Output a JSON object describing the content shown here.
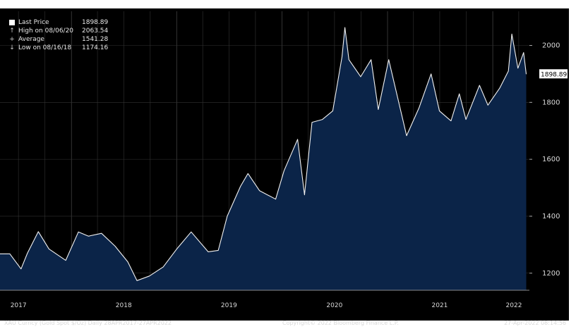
{
  "chart_data": {
    "type": "area",
    "title": "",
    "xlabel": "",
    "ylabel": "",
    "ylim": [
      1140,
      2120
    ],
    "yticks": [
      1200,
      1400,
      1600,
      1800,
      2000
    ],
    "x_tick_labels": [
      "2017",
      "2018",
      "2019",
      "2020",
      "2021",
      "2022"
    ],
    "x": [
      "2017-04-28",
      "2017-06-01",
      "2017-07-10",
      "2017-08-01",
      "2017-09-08",
      "2017-10-15",
      "2017-12-12",
      "2018-01-25",
      "2018-03-01",
      "2018-04-15",
      "2018-06-01",
      "2018-07-15",
      "2018-08-16",
      "2018-09-28",
      "2018-11-15",
      "2019-01-01",
      "2019-02-20",
      "2019-04-20",
      "2019-05-25",
      "2019-06-25",
      "2019-08-10",
      "2019-09-05",
      "2019-10-15",
      "2019-12-10",
      "2020-01-08",
      "2020-02-24",
      "2020-03-19",
      "2020-04-14",
      "2020-05-20",
      "2020-06-25",
      "2020-07-27",
      "2020-08-06",
      "2020-08-20",
      "2020-09-30",
      "2020-11-05",
      "2020-11-30",
      "2021-01-05",
      "2021-03-08",
      "2021-04-20",
      "2021-06-01",
      "2021-06-30",
      "2021-08-09",
      "2021-09-07",
      "2021-09-30",
      "2021-11-16",
      "2021-12-15",
      "2022-01-25",
      "2022-02-24",
      "2022-03-08",
      "2022-03-29",
      "2022-04-18",
      "2022-04-27"
    ],
    "series": [
      {
        "name": "",
        "values": [
          1268,
          1268,
          1215,
          1270,
          1346,
          1285,
          1245,
          1345,
          1330,
          1340,
          1295,
          1240,
          1174,
          1190,
          1222,
          1285,
          1345,
          1275,
          1280,
          1400,
          1505,
          1550,
          1490,
          1460,
          1560,
          1670,
          1475,
          1730,
          1740,
          1770,
          1960,
          2063,
          1950,
          1890,
          1950,
          1775,
          1950,
          1683,
          1780,
          1900,
          1770,
          1735,
          1830,
          1740,
          1860,
          1790,
          1850,
          1910,
          2040,
          1920,
          1975,
          1899
        ]
      }
    ],
    "last_price_marker": "1898.89",
    "legend_position": "top-left",
    "grid": true,
    "colors": {
      "fill": "#0b2448",
      "line": "#f2f2f2",
      "grid": "#333333",
      "background": "#000000"
    }
  },
  "legend": {
    "items": [
      {
        "icon": "square-icon",
        "name": "Last Price",
        "value": "1898.89"
      },
      {
        "icon": "arrow-up-icon",
        "name": "High on 08/06/20",
        "value": "2063.54"
      },
      {
        "icon": "dash-icon",
        "name": "Average",
        "value": "1541.28"
      },
      {
        "icon": "arrow-down-icon",
        "name": "Low on 08/16/18",
        "value": "1174.16"
      }
    ]
  },
  "footer": {
    "left": "XAU Curncy (Gold Spot  $/Oz)  Daily 28APR2017-27APR2022",
    "center": "Copyright© 2022 Bloomberg Finance L.P.",
    "right": "27-Apr-2022 08:14:56"
  }
}
